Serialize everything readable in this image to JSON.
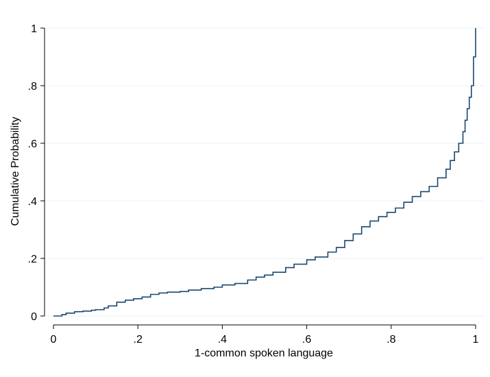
{
  "chart_data": {
    "type": "line",
    "title": "",
    "xlabel": "1-common spoken language",
    "ylabel": "Cumulative Probability",
    "xlim": [
      0,
      1
    ],
    "ylim": [
      0,
      1
    ],
    "x_ticks": [
      {
        "value": 0,
        "label": "0"
      },
      {
        "value": 0.2,
        "label": ".2"
      },
      {
        "value": 0.4,
        "label": ".4"
      },
      {
        "value": 0.6,
        "label": ".6"
      },
      {
        "value": 0.8,
        "label": ".8"
      },
      {
        "value": 1,
        "label": "1"
      }
    ],
    "y_ticks": [
      {
        "value": 0,
        "label": "0"
      },
      {
        "value": 0.2,
        "label": ".2"
      },
      {
        "value": 0.4,
        "label": ".4"
      },
      {
        "value": 0.6,
        "label": ".6"
      },
      {
        "value": 0.8,
        "label": ".8"
      },
      {
        "value": 1,
        "label": "1"
      }
    ],
    "grid": true,
    "legend": "none",
    "line_color": "#1a476f",
    "grid_color": "#eaf2f3",
    "series": [
      {
        "x": [
          0.0,
          0.02,
          0.03,
          0.05,
          0.07,
          0.09,
          0.1,
          0.12,
          0.13,
          0.15,
          0.17,
          0.19,
          0.21,
          0.23,
          0.25,
          0.27,
          0.3,
          0.32,
          0.35,
          0.38,
          0.4,
          0.43,
          0.46,
          0.48,
          0.5,
          0.52,
          0.55,
          0.57,
          0.6,
          0.62,
          0.65,
          0.67,
          0.69,
          0.71,
          0.73,
          0.75,
          0.77,
          0.79,
          0.81,
          0.83,
          0.85,
          0.87,
          0.89,
          0.91,
          0.93,
          0.94,
          0.95,
          0.96,
          0.97,
          0.975,
          0.98,
          0.985,
          0.99,
          0.995,
          1.0,
          1.0
        ],
        "y": [
          0.0,
          0.005,
          0.01,
          0.015,
          0.017,
          0.02,
          0.022,
          0.028,
          0.035,
          0.048,
          0.055,
          0.06,
          0.066,
          0.075,
          0.08,
          0.083,
          0.085,
          0.09,
          0.095,
          0.1,
          0.108,
          0.113,
          0.125,
          0.135,
          0.142,
          0.152,
          0.168,
          0.18,
          0.195,
          0.205,
          0.222,
          0.238,
          0.262,
          0.285,
          0.31,
          0.33,
          0.345,
          0.36,
          0.375,
          0.395,
          0.415,
          0.432,
          0.45,
          0.48,
          0.51,
          0.54,
          0.57,
          0.6,
          0.64,
          0.68,
          0.72,
          0.76,
          0.8,
          0.9,
          0.98,
          1.0
        ]
      }
    ]
  }
}
